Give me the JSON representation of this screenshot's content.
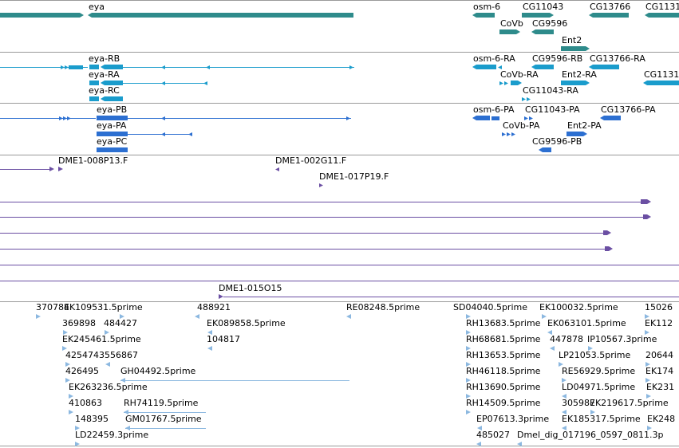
{
  "colors": {
    "gene": "#2e8b8b",
    "transcript_cyan": "#1a9ccc",
    "transcript_blue": "#2c6fd1",
    "probe_purple": "#6b4fa3",
    "est_blue": "#8cb8e0",
    "separator": "#9a9a9a"
  },
  "tracks": {
    "genes": [
      "eya",
      "osm-6",
      "CG11043",
      "CG13766",
      "CG1131",
      "CoVb",
      "CG9596",
      "Ent2"
    ],
    "transcripts_ra": [
      "eya-RB",
      "eya-RA",
      "eya-RC",
      "osm-6-RA",
      "CG9596-RB",
      "CG13766-RA",
      "CoVb-RA",
      "Ent2-RA",
      "CG11043-RA",
      "CG1131"
    ],
    "transcripts_pa": [
      "eya-PB",
      "eya-PA",
      "eya-PC",
      "osm-6-PA",
      "CG11043-PA",
      "CG13766-PA",
      "CoVb-PA",
      "Ent2-PA",
      "CG9596-PB"
    ],
    "clones": [
      "DME1-008P13.F",
      "DME1-002G11.F",
      "DME1-017P19.F",
      "DME1-015O15"
    ],
    "ests": [
      "370784",
      "EK109531.5prime",
      "488921",
      "RE08248.5prime",
      "SD04040.5prime",
      "EK100032.5prime",
      "15026",
      "369898",
      "484427",
      "EK089858.5prime",
      "RH13683.5prime",
      "EK063101.5prime",
      "EK112",
      "EK245461.5prime",
      "104817",
      "RH68681.5prime",
      "447878",
      "IP10567.3prime",
      "4254743556867",
      "RH13653.5prime",
      "LP21053.5prime",
      "20644",
      "426495",
      "GH04492.5prime",
      "RH46118.5prime",
      "RE56929.5prime",
      "EK174",
      "EK263236.5prime",
      "RH13690.5prime",
      "LD04971.5prime",
      "EK231",
      "410863",
      "RH74119.5prime",
      "RH14509.5prime",
      "305987",
      "EK219617.5prime",
      "148395",
      "GM01767.5prime",
      "EP07613.3prime",
      "EK185317.5prime",
      "EK248",
      "LD22459.3prime",
      "485027",
      "Dmel_dig_017196_0597_0811.3p"
    ]
  }
}
